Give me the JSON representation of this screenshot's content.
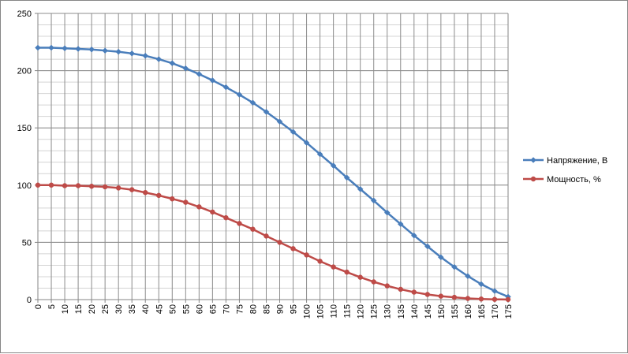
{
  "chart_data": {
    "type": "line",
    "title": "",
    "xlabel": "",
    "ylabel": "",
    "x": [
      0,
      5,
      10,
      15,
      20,
      25,
      30,
      35,
      40,
      45,
      50,
      55,
      60,
      65,
      70,
      75,
      80,
      85,
      90,
      95,
      100,
      105,
      110,
      115,
      120,
      125,
      130,
      135,
      140,
      145,
      150,
      155,
      160,
      165,
      170,
      175
    ],
    "ylim": [
      0,
      250
    ],
    "yticks": [
      0,
      50,
      100,
      150,
      200,
      250
    ],
    "grid": true,
    "legend_position": "right",
    "series": [
      {
        "name": "Напряжение, В",
        "color": "#4a7ebb",
        "marker": "diamond",
        "values": [
          220,
          220,
          219.5,
          219,
          218.5,
          217.5,
          216.5,
          215,
          213,
          210,
          206.5,
          202,
          197,
          191.5,
          185.5,
          179,
          172,
          164,
          155.5,
          146.5,
          137,
          127,
          117,
          106.5,
          96.5,
          86.5,
          76,
          66,
          56,
          46.5,
          37,
          28.5,
          20.5,
          13.5,
          7.5,
          2.5
        ]
      },
      {
        "name": "Мощность, %",
        "color": "#be4b48",
        "marker": "circle",
        "values": [
          100,
          100,
          99.5,
          99.5,
          99,
          98.5,
          97.5,
          96,
          93.5,
          91,
          88,
          85,
          81,
          76.5,
          71.5,
          66.5,
          61.5,
          55.5,
          50,
          44.5,
          39,
          33.5,
          28.5,
          24,
          19.5,
          15.5,
          12,
          9,
          6.5,
          4.5,
          3,
          2,
          1,
          0.5,
          0.2,
          0.1
        ]
      }
    ]
  }
}
